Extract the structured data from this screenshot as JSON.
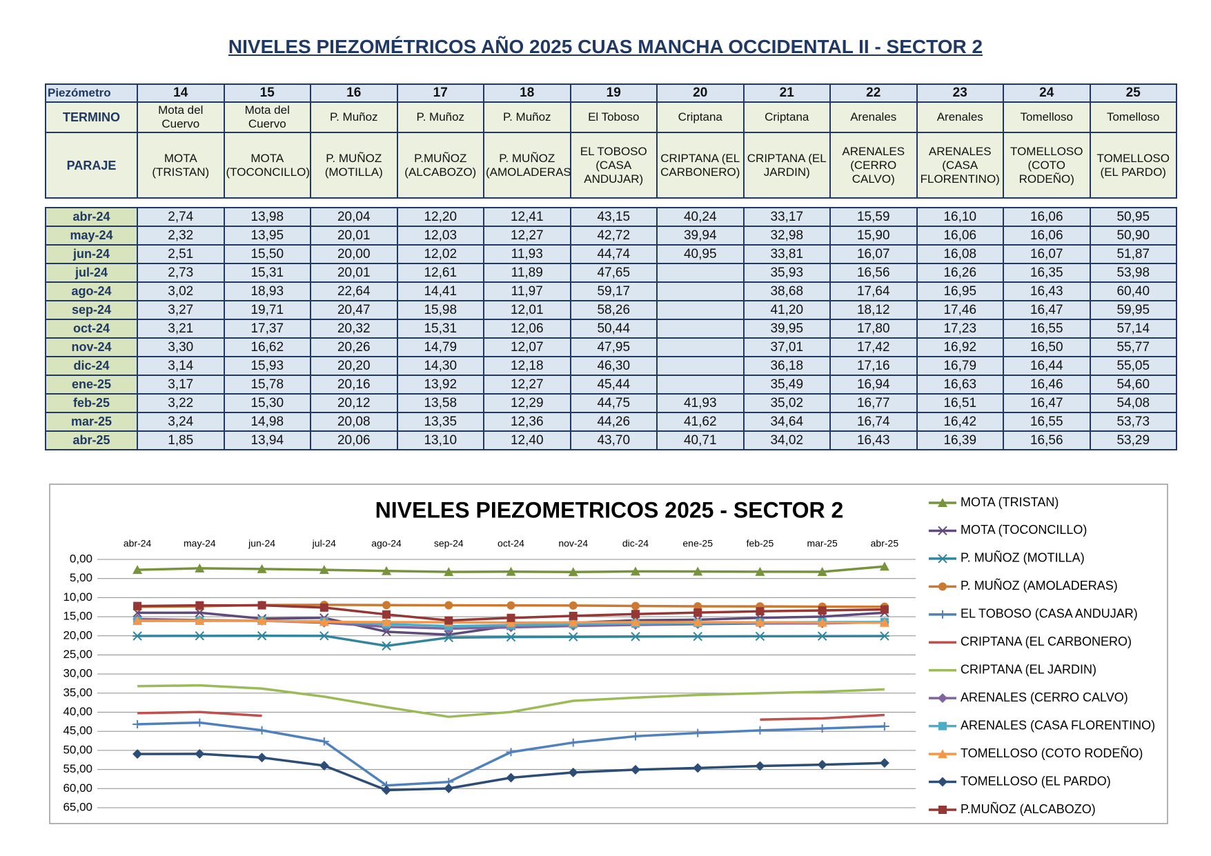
{
  "header": {
    "title": "NIVELES PIEZOMÉTRICOS AÑO 2025 CUAS MANCHA OCCIDENTAL II - SECTOR 2"
  },
  "table": {
    "labels": [
      "Piezómetro",
      "TERMINO",
      "PARAJE"
    ],
    "columns": [
      {
        "number": 14,
        "termino": "Mota del Cuervo",
        "paraje": "MOTA (TRISTAN)"
      },
      {
        "number": 15,
        "termino": "Mota del Cuervo",
        "paraje": "MOTA (TOCONCILLO)"
      },
      {
        "number": 16,
        "termino": "P. Muñoz",
        "paraje": "P. MUÑOZ (MOTILLA)"
      },
      {
        "number": 17,
        "termino": "P. Muñoz",
        "paraje": "P.MUÑOZ (ALCABOZO)"
      },
      {
        "number": 18,
        "termino": "P. Muñoz",
        "paraje": "P. MUÑOZ (AMOLADERAS)"
      },
      {
        "number": 19,
        "termino": "El Toboso",
        "paraje": "EL TOBOSO (CASA ANDUJAR)"
      },
      {
        "number": 20,
        "termino": "Criptana",
        "paraje": "CRIPTANA (EL CARBONERO)"
      },
      {
        "number": 21,
        "termino": "Criptana",
        "paraje": "CRIPTANA (EL JARDIN)"
      },
      {
        "number": 22,
        "termino": "Arenales",
        "paraje": "ARENALES (CERRO CALVO)"
      },
      {
        "number": 23,
        "termino": "Arenales",
        "paraje": "ARENALES (CASA FLORENTINO)"
      },
      {
        "number": 24,
        "termino": "Tomelloso",
        "paraje": "TOMELLOSO (COTO RODEÑO)"
      },
      {
        "number": 25,
        "termino": "Tomelloso",
        "paraje": "TOMELLOSO (EL PARDO)"
      }
    ],
    "rows": [
      [
        "abr-24",
        "2,74",
        "13,98",
        "20,04",
        "12,20",
        "12,41",
        "43,15",
        "40,24",
        "33,17",
        "15,59",
        "16,10",
        "16,06",
        "50,95"
      ],
      [
        "may-24",
        "2,32",
        "13,95",
        "20,01",
        "12,03",
        "12,27",
        "42,72",
        "39,94",
        "32,98",
        "15,90",
        "16,06",
        "16,06",
        "50,90"
      ],
      [
        "jun-24",
        "2,51",
        "15,50",
        "20,00",
        "12,02",
        "11,93",
        "44,74",
        "40,95",
        "33,81",
        "16,07",
        "16,08",
        "16,07",
        "51,87"
      ],
      [
        "jul-24",
        "2,73",
        "15,31",
        "20,01",
        "12,61",
        "11,89",
        "47,65",
        null,
        "35,93",
        "16,56",
        "16,26",
        "16,35",
        "53,98"
      ],
      [
        "ago-24",
        "3,02",
        "18,93",
        "22,64",
        "14,41",
        "11,97",
        "59,17",
        null,
        "38,68",
        "17,64",
        "16,95",
        "16,43",
        "60,40"
      ],
      [
        "sep-24",
        "3,27",
        "19,71",
        "20,47",
        "15,98",
        "12,01",
        "58,26",
        null,
        "41,20",
        "18,12",
        "17,46",
        "16,47",
        "59,95"
      ],
      [
        "oct-24",
        "3,21",
        "17,37",
        "20,32",
        "15,31",
        "12,06",
        "50,44",
        null,
        "39,95",
        "17,80",
        "17,23",
        "16,55",
        "57,14"
      ],
      [
        "nov-24",
        "3,30",
        "16,62",
        "20,26",
        "14,79",
        "12,07",
        "47,95",
        null,
        "37,01",
        "17,42",
        "16,92",
        "16,50",
        "55,77"
      ],
      [
        "dic-24",
        "3,14",
        "15,93",
        "20,20",
        "14,30",
        "12,18",
        "46,30",
        null,
        "36,18",
        "17,16",
        "16,79",
        "16,44",
        "55,05"
      ],
      [
        "ene-25",
        "3,17",
        "15,78",
        "20,16",
        "13,92",
        "12,27",
        "45,44",
        null,
        "35,49",
        "16,94",
        "16,63",
        "16,46",
        "54,60"
      ],
      [
        "feb-25",
        "3,22",
        "15,30",
        "20,12",
        "13,58",
        "12,29",
        "44,75",
        "41,93",
        "35,02",
        "16,77",
        "16,51",
        "16,47",
        "54,08"
      ],
      [
        "mar-25",
        "3,24",
        "14,98",
        "20,08",
        "13,35",
        "12,36",
        "44,26",
        "41,62",
        "34,64",
        "16,74",
        "16,42",
        "16,55",
        "53,73"
      ],
      [
        "abr-25",
        "1,85",
        "13,94",
        "20,06",
        "13,10",
        "12,40",
        "43,70",
        "40,71",
        "34,02",
        "16,43",
        "16,39",
        "16,56",
        "53,29"
      ]
    ]
  },
  "chart_data": {
    "type": "line",
    "title": "NIVELES PIEZOMETRICOS 2025 - SECTOR 2",
    "categories": [
      "abr-24",
      "may-24",
      "jun-24",
      "jul-24",
      "ago-24",
      "sep-24",
      "oct-24",
      "nov-24",
      "dic-24",
      "ene-25",
      "feb-25",
      "mar-25",
      "abr-25"
    ],
    "ylim": [
      0,
      65
    ],
    "y_reversed": true,
    "grid": true,
    "legend": "right",
    "yticks": [
      {
        "value": 0,
        "label": "0,00"
      },
      {
        "value": 5,
        "label": "5,00"
      },
      {
        "value": 10,
        "label": "10,00"
      },
      {
        "value": 15,
        "label": "15,00"
      },
      {
        "value": 20,
        "label": "20,00"
      },
      {
        "value": 25,
        "label": "25,00"
      },
      {
        "value": 30,
        "label": "30,00"
      },
      {
        "value": 35,
        "label": "35,00"
      },
      {
        "value": 40,
        "label": "40,00"
      },
      {
        "value": 45,
        "label": "45,00"
      },
      {
        "value": 50,
        "label": "50,00"
      },
      {
        "value": 55,
        "label": "55,00"
      },
      {
        "value": 60,
        "label": "60,00"
      },
      {
        "value": 65,
        "label": "65,00"
      }
    ],
    "series": [
      {
        "name": "MOTA (TRISTAN)",
        "color": "#77933c",
        "marker": "triangle",
        "values": [
          2.74,
          2.32,
          2.51,
          2.73,
          3.02,
          3.27,
          3.21,
          3.3,
          3.14,
          3.17,
          3.22,
          3.24,
          1.85
        ]
      },
      {
        "name": "MOTA (TOCONCILLO)",
        "color": "#604a7b",
        "marker": "x",
        "values": [
          13.98,
          13.95,
          15.5,
          15.31,
          18.93,
          19.71,
          17.37,
          16.62,
          15.93,
          15.78,
          15.3,
          14.98,
          13.94
        ]
      },
      {
        "name": "P. MUÑOZ (MOTILLA)",
        "color": "#31859c",
        "marker": "asterisk",
        "values": [
          20.04,
          20.01,
          20.0,
          20.01,
          22.64,
          20.47,
          20.32,
          20.26,
          20.2,
          20.16,
          20.12,
          20.08,
          20.06
        ]
      },
      {
        "name": "P. MUÑOZ (AMOLADERAS)",
        "color": "#cc7a32",
        "marker": "circle",
        "values": [
          12.41,
          12.27,
          11.93,
          11.89,
          11.97,
          12.01,
          12.06,
          12.07,
          12.18,
          12.27,
          12.29,
          12.36,
          12.4
        ]
      },
      {
        "name": "EL TOBOSO (CASA ANDUJAR)",
        "color": "#4f81bd",
        "marker": "plus",
        "values": [
          43.15,
          42.72,
          44.74,
          47.65,
          59.17,
          58.26,
          50.44,
          47.95,
          46.3,
          45.44,
          44.75,
          44.26,
          43.7
        ]
      },
      {
        "name": "CRIPTANA (EL CARBONERO)",
        "color": "#c0504d",
        "marker": "none",
        "values": [
          40.24,
          39.94,
          40.95,
          null,
          null,
          null,
          null,
          null,
          null,
          null,
          41.93,
          41.62,
          40.71
        ]
      },
      {
        "name": "CRIPTANA (EL JARDIN)",
        "color": "#9bbb59",
        "marker": "none",
        "values": [
          33.17,
          32.98,
          33.81,
          35.93,
          38.68,
          41.2,
          39.95,
          37.01,
          36.18,
          35.49,
          35.02,
          34.64,
          34.02
        ]
      },
      {
        "name": "ARENALES (CERRO CALVO)",
        "color": "#8064a2",
        "marker": "diamond",
        "values": [
          15.59,
          15.9,
          16.07,
          16.56,
          17.64,
          18.12,
          17.8,
          17.42,
          17.16,
          16.94,
          16.77,
          16.74,
          16.43
        ]
      },
      {
        "name": "ARENALES (CASA FLORENTINO)",
        "color": "#4bacc6",
        "marker": "square",
        "values": [
          16.1,
          16.06,
          16.08,
          16.26,
          16.95,
          17.46,
          17.23,
          16.92,
          16.79,
          16.63,
          16.51,
          16.42,
          16.39
        ]
      },
      {
        "name": "TOMELLOSO (COTO RODEÑO)",
        "color": "#f79646",
        "marker": "triangle",
        "values": [
          16.06,
          16.06,
          16.07,
          16.35,
          16.43,
          16.47,
          16.55,
          16.5,
          16.44,
          16.46,
          16.47,
          16.55,
          16.56
        ]
      },
      {
        "name": "TOMELLOSO (EL PARDO)",
        "color": "#2c4d75",
        "marker": "diamond",
        "values": [
          50.95,
          50.9,
          51.87,
          53.98,
          60.4,
          59.95,
          57.14,
          55.77,
          55.05,
          54.6,
          54.08,
          53.73,
          53.29
        ]
      },
      {
        "name": "P.MUÑOZ (ALCABOZO)",
        "color": "#953735",
        "marker": "square",
        "values": [
          12.2,
          12.03,
          12.02,
          12.61,
          14.41,
          15.98,
          15.31,
          14.79,
          14.3,
          13.92,
          13.58,
          13.35,
          13.1
        ]
      }
    ]
  }
}
